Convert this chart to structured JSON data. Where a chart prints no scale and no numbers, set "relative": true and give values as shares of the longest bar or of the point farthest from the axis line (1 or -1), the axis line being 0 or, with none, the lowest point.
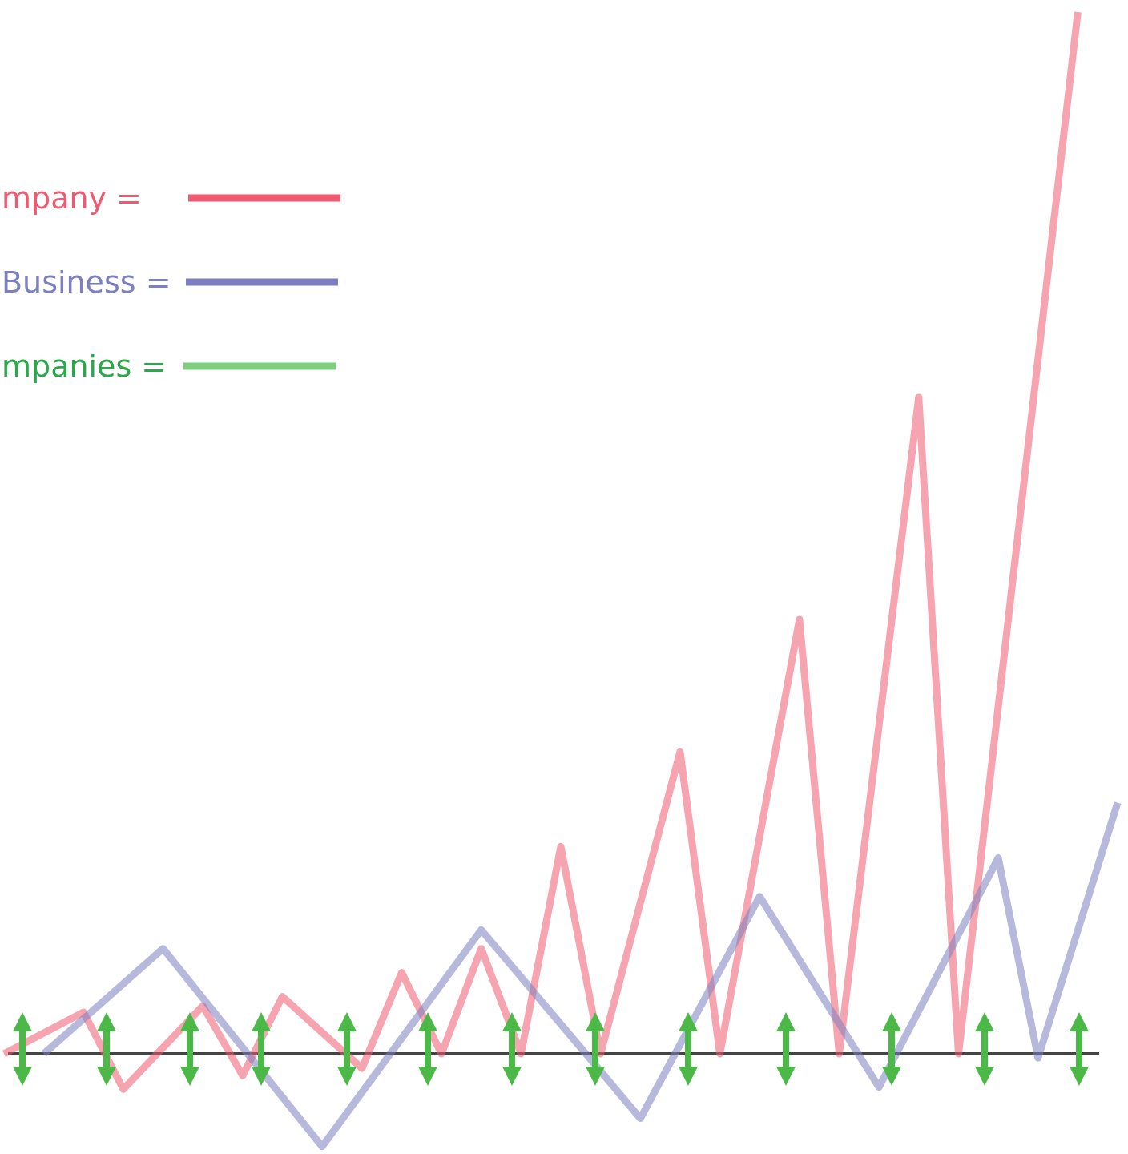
{
  "chart_data": {
    "type": "line",
    "relative": true,
    "legend": "top left",
    "categories": [
      null,
      null,
      null,
      null,
      null,
      null,
      null,
      null,
      null,
      null,
      null,
      null,
      null,
      null,
      null,
      null,
      null,
      null,
      null,
      null,
      null,
      null,
      null,
      null,
      null,
      null,
      null,
      null,
      null
    ],
    "series": [
      {
        "name": "mpany =",
        "color": "#ee5a70",
        "values": [
          0,
          null,
          0.04,
          -0.034,
          null,
          0.046,
          -0.021,
          0.055,
          null,
          -0.014,
          0.078,
          0,
          0.101,
          0,
          0.199,
          0,
          null,
          0.29,
          0,
          null,
          0.417,
          0,
          null,
          0.63,
          0,
          null,
          null,
          1,
          null
        ]
      },
      {
        "name": "Business =",
        "color": "#7c80c0",
        "values": [
          null,
          0,
          null,
          null,
          0.101,
          null,
          null,
          null,
          -0.089,
          null,
          null,
          null,
          0.119,
          null,
          null,
          null,
          -0.062,
          null,
          null,
          0.151,
          null,
          null,
          -0.032,
          null,
          null,
          0.188,
          -0.004,
          null,
          0.241
        ]
      }
    ],
    "annotations": [
      "mpanies ="
    ]
  }
}
